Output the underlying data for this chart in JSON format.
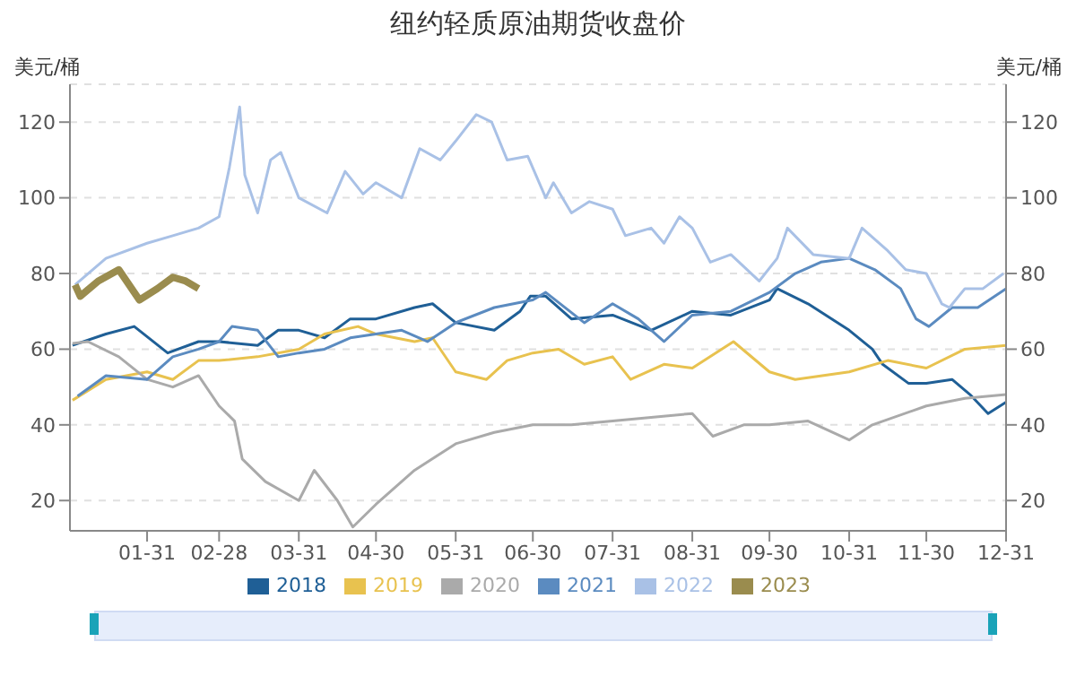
{
  "chart_data": {
    "type": "line",
    "title": "纽约轻质原油期货收盘价",
    "ylabel": "美元/桶",
    "y2label": "美元/桶",
    "xlim": [
      "--01-01",
      "--12-31"
    ],
    "xticks": [
      {
        "value": "--01-31",
        "label": "01-31"
      },
      {
        "value": "--02-28",
        "label": "02-28"
      },
      {
        "value": "--03-31",
        "label": "03-31"
      },
      {
        "value": "--04-30",
        "label": "04-30"
      },
      {
        "value": "--05-31",
        "label": "05-31"
      },
      {
        "value": "--06-30",
        "label": "06-30"
      },
      {
        "value": "--07-31",
        "label": "07-31"
      },
      {
        "value": "--08-31",
        "label": "08-31"
      },
      {
        "value": "--09-30",
        "label": "09-30"
      },
      {
        "value": "--10-31",
        "label": "10-31"
      },
      {
        "value": "--11-30",
        "label": "11-30"
      },
      {
        "value": "--12-31",
        "label": "12-31"
      }
    ],
    "ylim": [
      12,
      130
    ],
    "yticks": [
      20,
      40,
      60,
      80,
      100,
      120
    ],
    "y2lim": [
      12,
      130
    ],
    "y2ticks": [
      20,
      40,
      60,
      80,
      100,
      120
    ],
    "grid": "y",
    "legend": "bottom",
    "marker": "none",
    "line_style": "solid",
    "series": [
      {
        "name": "2018",
        "color": "#1f5f96",
        "x": [
          "--01-02",
          "--01-15",
          "--01-26",
          "--02-08",
          "--02-20",
          "--02-28",
          "--03-15",
          "--03-23",
          "--03-31",
          "--04-10",
          "--04-20",
          "--04-30",
          "--05-15",
          "--05-22",
          "--05-31",
          "--06-15",
          "--06-25",
          "--06-29",
          "--07-05",
          "--07-15",
          "--07-31",
          "--08-15",
          "--08-31",
          "--09-15",
          "--09-30",
          "--10-03",
          "--10-15",
          "--10-31",
          "--11-09",
          "--11-13",
          "--11-23",
          "--11-30",
          "--12-10",
          "--12-17",
          "--12-24",
          "--12-31"
        ],
        "values": [
          61,
          64,
          66,
          59,
          62,
          62,
          61,
          65,
          65,
          63,
          68,
          68,
          71,
          72,
          67,
          65,
          70,
          74,
          74,
          68,
          69,
          65,
          70,
          69,
          73,
          76,
          72,
          65,
          60,
          56,
          51,
          51,
          52,
          48,
          43,
          46
        ]
      },
      {
        "name": "2019",
        "color": "#e8c24f",
        "x": [
          "--01-02",
          "--01-15",
          "--01-31",
          "--02-10",
          "--02-20",
          "--02-28",
          "--03-15",
          "--03-31",
          "--04-10",
          "--04-23",
          "--04-30",
          "--05-15",
          "--05-22",
          "--05-31",
          "--06-12",
          "--06-20",
          "--06-30",
          "--07-10",
          "--07-20",
          "--07-31",
          "--08-07",
          "--08-20",
          "--08-31",
          "--09-16",
          "--09-30",
          "--10-10",
          "--10-31",
          "--11-15",
          "--11-30",
          "--12-15",
          "--12-31"
        ],
        "values": [
          46.5,
          52,
          54,
          52,
          57,
          57,
          58,
          60,
          64,
          66,
          64,
          62,
          63,
          54,
          52,
          57,
          59,
          60,
          56,
          58,
          52,
          56,
          55,
          62,
          54,
          52,
          54,
          57,
          55,
          60,
          61
        ]
      },
      {
        "name": "2020",
        "color": "#aaaaaa",
        "x": [
          "--01-02",
          "--01-08",
          "--01-20",
          "--01-31",
          "--02-10",
          "--02-20",
          "--02-28",
          "--03-06",
          "--03-09",
          "--03-18",
          "--03-31",
          "--04-06",
          "--04-15",
          "--04-21",
          "--04-30",
          "--05-15",
          "--05-31",
          "--06-15",
          "--06-30",
          "--07-15",
          "--07-31",
          "--08-15",
          "--08-31",
          "--09-08",
          "--09-20",
          "--09-30",
          "--10-15",
          "--10-31",
          "--11-09",
          "--11-30",
          "--12-15",
          "--12-31"
        ],
        "values": [
          61.5,
          62,
          58,
          52,
          50,
          53,
          45,
          41,
          31,
          25,
          20,
          28,
          20,
          13,
          19,
          28,
          35,
          38,
          40,
          40,
          41,
          42,
          43,
          37,
          40,
          40,
          41,
          36,
          40,
          45,
          47,
          48
        ]
      },
      {
        "name": "2021",
        "color": "#5b8bc0",
        "x": [
          "--01-04",
          "--01-15",
          "--01-31",
          "--02-10",
          "--02-20",
          "--02-28",
          "--03-05",
          "--03-15",
          "--03-23",
          "--03-31",
          "--04-10",
          "--04-20",
          "--04-30",
          "--05-10",
          "--05-20",
          "--05-31",
          "--06-15",
          "--06-30",
          "--07-05",
          "--07-20",
          "--07-31",
          "--08-10",
          "--08-20",
          "--08-31",
          "--09-15",
          "--09-30",
          "--10-10",
          "--10-20",
          "--10-31",
          "--11-10",
          "--11-20",
          "--11-26",
          "--12-01",
          "--12-10",
          "--12-20",
          "--12-31"
        ],
        "values": [
          47.6,
          53,
          52,
          58,
          60,
          62,
          66,
          65,
          58,
          59,
          60,
          63,
          64,
          65,
          62,
          67,
          71,
          73,
          75,
          67,
          72,
          68,
          62,
          69,
          70,
          75,
          80,
          83,
          84,
          81,
          76,
          68,
          66,
          71,
          71,
          76
        ]
      },
      {
        "name": "2022",
        "color": "#a9c1e6",
        "x": [
          "--01-03",
          "--01-15",
          "--01-31",
          "--02-10",
          "--02-20",
          "--02-28",
          "--03-04",
          "--03-08",
          "--03-10",
          "--03-15",
          "--03-20",
          "--03-24",
          "--03-31",
          "--04-11",
          "--04-18",
          "--04-25",
          "--04-30",
          "--05-10",
          "--05-17",
          "--05-25",
          "--05-31",
          "--06-08",
          "--06-14",
          "--06-20",
          "--06-28",
          "--07-05",
          "--07-08",
          "--07-15",
          "--07-22",
          "--07-31",
          "--08-05",
          "--08-15",
          "--08-20",
          "--08-26",
          "--08-31",
          "--09-07",
          "--09-15",
          "--09-26",
          "--10-03",
          "--10-07",
          "--10-17",
          "--10-31",
          "--11-05",
          "--11-15",
          "--11-22",
          "--11-30",
          "--12-06",
          "--12-09",
          "--12-15",
          "--12-22",
          "--12-30"
        ],
        "values": [
          77,
          84,
          88,
          90,
          92,
          95,
          108,
          124,
          106,
          96,
          110,
          112,
          100,
          96,
          107,
          101,
          104,
          100,
          113,
          110,
          115,
          122,
          120,
          110,
          111,
          100,
          104,
          96,
          99,
          97,
          90,
          92,
          88,
          95,
          92,
          83,
          85,
          78,
          84,
          92,
          85,
          84,
          92,
          86,
          81,
          80,
          72,
          71,
          76,
          76,
          80
        ]
      },
      {
        "name": "2023",
        "color": "#9a8c4e",
        "x": [
          "--01-03",
          "--01-05",
          "--01-12",
          "--01-20",
          "--01-28",
          "--02-04",
          "--02-10",
          "--02-15",
          "--02-20"
        ],
        "values": [
          77,
          74,
          78,
          81,
          73,
          76,
          79,
          78,
          76
        ]
      }
    ]
  }
}
